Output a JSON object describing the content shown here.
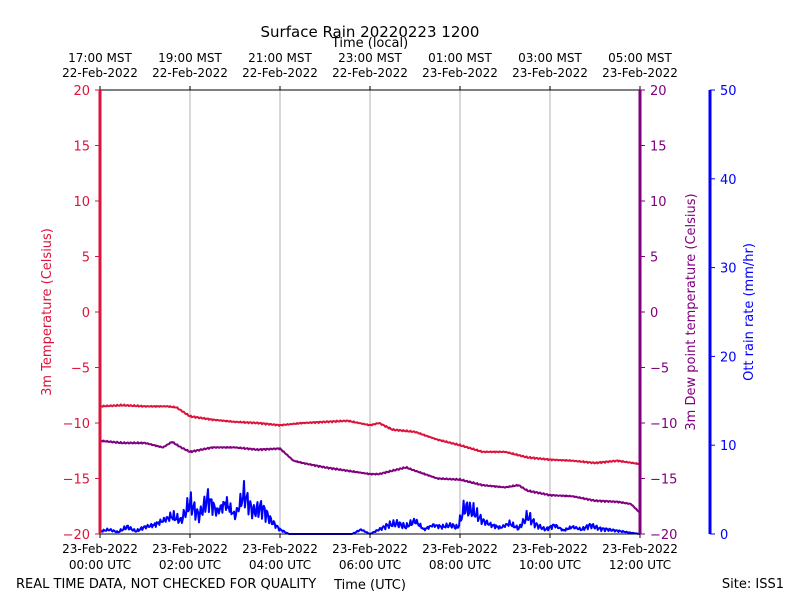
{
  "chart_data": {
    "type": "line",
    "title": "Surface Rain 20220223 1200",
    "top_axis_label": "Time (local)",
    "xlabel": "Time (UTC)",
    "footer_left": "REAL TIME DATA, NOT CHECKED FOR QUALITY",
    "footer_right": "Site: ISS1",
    "x_range_hours": [
      0,
      12
    ],
    "bottom_ticks": [
      {
        "hour": 0,
        "line1": "23-Feb-2022",
        "line2": "00:00 UTC"
      },
      {
        "hour": 2,
        "line1": "23-Feb-2022",
        "line2": "02:00 UTC"
      },
      {
        "hour": 4,
        "line1": "23-Feb-2022",
        "line2": "04:00 UTC"
      },
      {
        "hour": 6,
        "line1": "23-Feb-2022",
        "line2": "06:00 UTC"
      },
      {
        "hour": 8,
        "line1": "23-Feb-2022",
        "line2": "08:00 UTC"
      },
      {
        "hour": 10,
        "line1": "23-Feb-2022",
        "line2": "10:00 UTC"
      },
      {
        "hour": 12,
        "line1": "23-Feb-2022",
        "line2": "12:00 UTC"
      }
    ],
    "top_ticks": [
      {
        "hour": 0,
        "line1": "17:00 MST",
        "line2": "22-Feb-2022"
      },
      {
        "hour": 2,
        "line1": "19:00 MST",
        "line2": "22-Feb-2022"
      },
      {
        "hour": 4,
        "line1": "21:00 MST",
        "line2": "22-Feb-2022"
      },
      {
        "hour": 6,
        "line1": "23:00 MST",
        "line2": "22-Feb-2022"
      },
      {
        "hour": 8,
        "line1": "01:00 MST",
        "line2": "23-Feb-2022"
      },
      {
        "hour": 10,
        "line1": "03:00 MST",
        "line2": "23-Feb-2022"
      },
      {
        "hour": 12,
        "line1": "05:00 MST",
        "line2": "23-Feb-2022"
      }
    ],
    "grid_x": true,
    "axes": {
      "temp": {
        "label": "3m Temperature (Celsius)",
        "ylim": [
          -20,
          20
        ],
        "ticks": [
          -20,
          -15,
          -10,
          -5,
          0,
          5,
          10,
          15,
          20
        ],
        "tick_labels": [
          "−20",
          "−15",
          "−10",
          "−5",
          "0",
          "5",
          "10",
          "15",
          "20"
        ],
        "color": "#dc143c"
      },
      "dew": {
        "label": "3m Dew point temperature (Celsius)",
        "ylim": [
          -20,
          20
        ],
        "ticks": [
          -20,
          -15,
          -10,
          -5,
          0,
          5,
          10,
          15,
          20
        ],
        "tick_labels": [
          "−20",
          "−15",
          "−10",
          "−5",
          "0",
          "5",
          "10",
          "15",
          "20"
        ],
        "color": "#800080"
      },
      "rain": {
        "label": "Ott rain rate (mm/hr)",
        "ylim": [
          0,
          50
        ],
        "ticks": [
          0,
          10,
          20,
          30,
          40,
          50
        ],
        "tick_labels": [
          "0",
          "10",
          "20",
          "30",
          "40",
          "50"
        ],
        "color": "#0000ff"
      }
    },
    "series": [
      {
        "name": "3m Temperature",
        "axis": "temp",
        "color": "#dc143c",
        "x": [
          0,
          0.5,
          1,
          1.5,
          1.7,
          2,
          2.5,
          3,
          3.5,
          4,
          4.5,
          5,
          5.5,
          6,
          6.2,
          6.5,
          7,
          7.5,
          8,
          8.5,
          9,
          9.5,
          10,
          10.5,
          11,
          11.5,
          12
        ],
        "values": [
          -8.5,
          -8.4,
          -8.5,
          -8.5,
          -8.6,
          -9.4,
          -9.7,
          -9.9,
          -10.0,
          -10.2,
          -10.0,
          -9.9,
          -9.8,
          -10.2,
          -10.0,
          -10.6,
          -10.8,
          -11.5,
          -12.0,
          -12.6,
          -12.6,
          -13.1,
          -13.3,
          -13.4,
          -13.6,
          -13.4,
          -13.7
        ]
      },
      {
        "name": "3m Dew point temperature",
        "axis": "dew",
        "color": "#800080",
        "x": [
          0,
          0.5,
          1,
          1.4,
          1.6,
          1.8,
          2,
          2.5,
          3,
          3.5,
          4,
          4.3,
          4.5,
          5,
          5.5,
          6,
          6.2,
          6.5,
          6.8,
          7,
          7.5,
          8,
          8.5,
          9,
          9.3,
          9.5,
          10,
          10.5,
          11,
          11.5,
          11.8,
          12
        ],
        "values": [
          -11.6,
          -11.8,
          -11.8,
          -12.2,
          -11.7,
          -12.2,
          -12.6,
          -12.2,
          -12.2,
          -12.4,
          -12.3,
          -13.4,
          -13.6,
          -14.0,
          -14.3,
          -14.6,
          -14.6,
          -14.3,
          -14.0,
          -14.3,
          -15.0,
          -15.1,
          -15.6,
          -15.8,
          -15.6,
          -16.1,
          -16.5,
          -16.6,
          -17.0,
          -17.1,
          -17.3,
          -18.1
        ]
      },
      {
        "name": "Ott rain rate",
        "axis": "rain",
        "color": "#0000ff",
        "x": [
          0,
          0.2,
          0.4,
          0.6,
          0.8,
          1,
          1.2,
          1.4,
          1.6,
          1.8,
          2,
          2.2,
          2.4,
          2.6,
          2.8,
          3,
          3.2,
          3.4,
          3.6,
          3.8,
          4,
          4.2,
          4.4,
          5.4,
          5.6,
          5.8,
          6,
          6.2,
          6.4,
          6.6,
          6.8,
          7,
          7.2,
          7.4,
          7.6,
          7.8,
          7.95,
          8.1,
          8.3,
          8.5,
          8.7,
          8.9,
          9.1,
          9.3,
          9.5,
          9.7,
          9.9,
          10.1,
          10.3,
          10.5,
          10.7,
          10.9,
          11.1,
          11.3,
          12
        ],
        "values": [
          0.3,
          0.5,
          0.2,
          0.8,
          0.3,
          0.8,
          1.0,
          1.5,
          2.0,
          1.5,
          3.5,
          2.0,
          4.0,
          2.5,
          3.5,
          2.0,
          4.5,
          2.5,
          3.0,
          1.5,
          0.5,
          0,
          0,
          0,
          0,
          0.5,
          0,
          0.5,
          1.0,
          1.2,
          0.8,
          1.5,
          0.5,
          1.0,
          0.8,
          1.0,
          0.7,
          3.0,
          2.5,
          1.5,
          1.0,
          0.7,
          1.2,
          0.6,
          2.0,
          1.0,
          0.5,
          1.0,
          0.4,
          0.8,
          0.5,
          1.0,
          0.6,
          0.5,
          0
        ]
      }
    ]
  }
}
